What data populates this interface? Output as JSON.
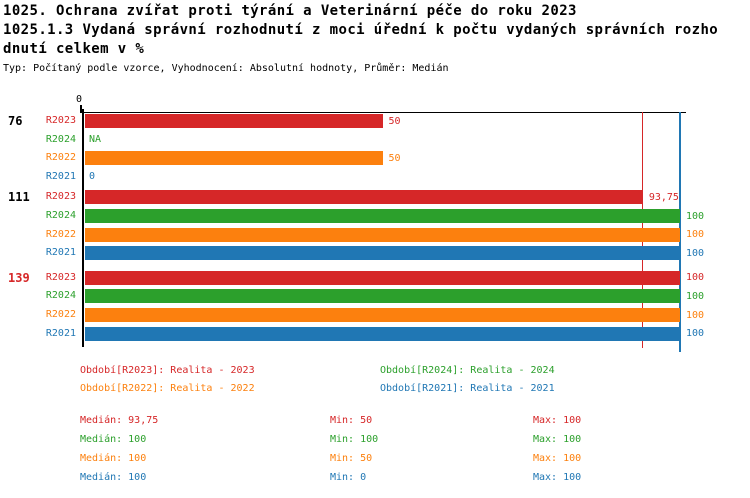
{
  "header": {
    "title_line1": "1025. Ochrana zvířat proti týrání a Veterinární péče do roku 2023",
    "title_line2": "1025.1.3 Vydaná správní rozhodnutí z moci úřední k počtu vydaných správních rozho",
    "title_line3": "dnutí celkem v %",
    "meta": "Typ: Počítaný podle vzorce, Vyhodnocení: Absolutní hodnoty, Průměr: Medián"
  },
  "chart_data": {
    "type": "bar",
    "orientation": "horizontal",
    "xlim": [
      0,
      100
    ],
    "axis_tick_label": "0",
    "grid": false,
    "series": [
      {
        "id": "R2023",
        "name": "Realita - 2023",
        "color": "#d62728"
      },
      {
        "id": "R2024",
        "name": "Realita - 2024",
        "color": "#2ca02c"
      },
      {
        "id": "R2022",
        "name": "Realita - 2022",
        "color": "#fc800e"
      },
      {
        "id": "R2021",
        "name": "Realita - 2021",
        "color": "#2077b4"
      }
    ],
    "groups": [
      {
        "label": "76",
        "label_color": "#000000",
        "values": [
          50,
          null,
          50,
          0
        ],
        "displays": [
          "50",
          "NA",
          "50",
          "0"
        ]
      },
      {
        "label": "111",
        "label_color": "#000000",
        "values": [
          93.75,
          100,
          100,
          100
        ],
        "displays": [
          "93,75",
          "100",
          "100",
          "100"
        ]
      },
      {
        "label": "139",
        "label_color": "#d62728",
        "values": [
          100,
          100,
          100,
          100
        ],
        "displays": [
          "100",
          "100",
          "100",
          "100"
        ]
      }
    ],
    "reference_lines": [
      {
        "value": 93.75,
        "color": "#d62728"
      },
      {
        "value": 100,
        "color": "#2077b4"
      }
    ],
    "legend": [
      {
        "text": "Období[R2023]: Realita - 2023",
        "color": "#d62728"
      },
      {
        "text": "Období[R2024]: Realita - 2024",
        "color": "#2ca02c"
      },
      {
        "text": "Období[R2022]: Realita - 2022",
        "color": "#fc800e"
      },
      {
        "text": "Období[R2021]: Realita - 2021",
        "color": "#2077b4"
      }
    ],
    "stats": [
      {
        "median_text": "Medián: 93,75",
        "min_text": "Min: 50",
        "max_text": "Max: 100",
        "color": "#d62728"
      },
      {
        "median_text": "Medián: 100",
        "min_text": "Min: 100",
        "max_text": "Max: 100",
        "color": "#2ca02c"
      },
      {
        "median_text": "Medián: 100",
        "min_text": "Min: 50",
        "max_text": "Max: 100",
        "color": "#fc800e"
      },
      {
        "median_text": "Medián: 100",
        "min_text": "Min: 0",
        "max_text": "Max: 100",
        "color": "#2077b4"
      }
    ]
  }
}
